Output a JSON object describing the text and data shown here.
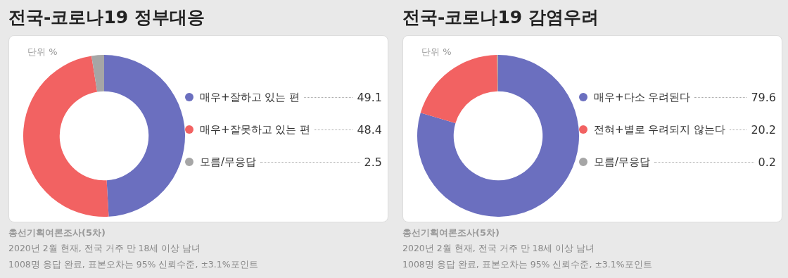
{
  "chart_data": [
    {
      "type": "donut",
      "title": "전국-코로나19 정부대응",
      "categories": [
        "매우+잘하고 있는 편",
        "매우+잘못하고 있는 편",
        "모름/무응답"
      ],
      "values": [
        49.1,
        48.4,
        2.5
      ],
      "colors": [
        "#6b6fbf",
        "#f26262",
        "#a6a6a6"
      ],
      "data_labels": true,
      "legend": "right",
      "annotations": [
        "단위 %",
        "총선기획여론조사(5차)",
        "2020년 2월 현재, 전국 거주 만 18세 이상 남녀",
        "1008명 응답 완료, 표본오차는 95% 신뢰수준, ±3.1%포인트"
      ]
    },
    {
      "type": "donut",
      "title": "전국-코로나19 감염우려",
      "categories": [
        "매우+다소 우려된다",
        "전혀+별로 우려되지 않는다",
        "모름/무응답"
      ],
      "values": [
        79.6,
        20.2,
        0.2
      ],
      "colors": [
        "#6b6fbf",
        "#f26262",
        "#a6a6a6"
      ],
      "data_labels": true,
      "legend": "right",
      "annotations": [
        "단위 %",
        "총선기획여론조사(5차)",
        "2020년 2월 현재, 전국 거주 만 18세 이상 남녀",
        "1008명 응답 완료, 표본오차는 95% 신뢰수준, ±3.1%포인트"
      ]
    }
  ]
}
